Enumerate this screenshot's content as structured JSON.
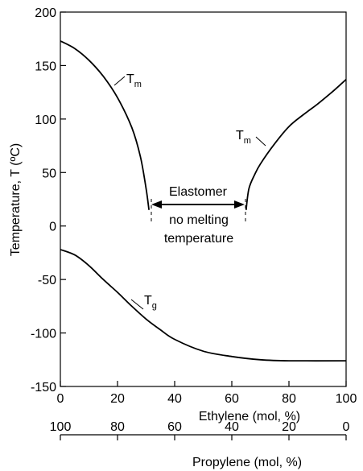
{
  "chart_data": {
    "type": "line",
    "title": "",
    "xlabel": "Ethylene (mol, %)",
    "x2label": "Propylene (mol, %)",
    "ylabel": "Temperature, T (ºC)",
    "xlim": [
      0,
      100
    ],
    "ylim": [
      -150,
      200
    ],
    "x_ticks": [
      0,
      20,
      40,
      60,
      80,
      100
    ],
    "x2_ticks": [
      100,
      80,
      60,
      40,
      20,
      0
    ],
    "y_ticks": [
      200,
      150,
      100,
      50,
      0,
      -50,
      -100,
      -150
    ],
    "grid": false,
    "series": [
      {
        "label": "Tm",
        "points": [
          [
            0,
            173
          ],
          [
            5,
            166
          ],
          [
            10,
            155
          ],
          [
            15,
            140
          ],
          [
            20,
            120
          ],
          [
            25,
            92
          ],
          [
            28,
            65
          ],
          [
            30,
            35
          ],
          [
            31,
            15
          ]
        ]
      },
      {
        "label": "Tm",
        "points": [
          [
            65,
            15
          ],
          [
            66,
            35
          ],
          [
            68,
            48
          ],
          [
            70,
            58
          ],
          [
            75,
            77
          ],
          [
            80,
            93
          ],
          [
            85,
            104
          ],
          [
            90,
            114
          ],
          [
            95,
            125
          ],
          [
            100,
            137
          ]
        ]
      },
      {
        "label": "Tg",
        "points": [
          [
            0,
            -22
          ],
          [
            5,
            -27
          ],
          [
            10,
            -37
          ],
          [
            15,
            -50
          ],
          [
            20,
            -62
          ],
          [
            25,
            -75
          ],
          [
            30,
            -87
          ],
          [
            35,
            -97
          ],
          [
            40,
            -106
          ],
          [
            50,
            -117
          ],
          [
            60,
            -122
          ],
          [
            70,
            -125
          ],
          [
            80,
            -126
          ],
          [
            100,
            -126
          ]
        ]
      }
    ],
    "annotations": {
      "tm_left": {
        "main": "T",
        "sub": "m"
      },
      "tm_right": {
        "main": "T",
        "sub": "m"
      },
      "tg": {
        "main": "T",
        "sub": "g"
      },
      "elastomer": "Elastomer",
      "no_melting_1": "no melting",
      "no_melting_2": "temperature"
    },
    "line_color": "#000000"
  }
}
